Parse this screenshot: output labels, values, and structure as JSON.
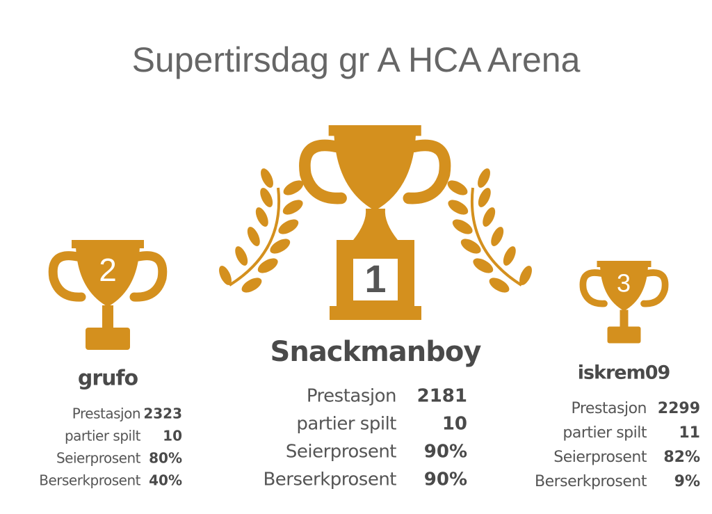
{
  "title": "Supertirsdag gr A HCA Arena",
  "podium": [
    {
      "rank": "2",
      "name": "grufo",
      "stats": [
        {
          "label": "Prestasjon",
          "value": "2323"
        },
        {
          "label": "partier spilt",
          "value": "10"
        },
        {
          "label": "Seierprosent",
          "value": "80%"
        },
        {
          "label": "Berserkprosent",
          "value": "40%"
        }
      ]
    },
    {
      "rank": "1",
      "name": "Snackmanboy",
      "stats": [
        {
          "label": "Prestasjon",
          "value": "2181"
        },
        {
          "label": "partier spilt",
          "value": "10"
        },
        {
          "label": "Seierprosent",
          "value": "90%"
        },
        {
          "label": "Berserkprosent",
          "value": "90%"
        }
      ]
    },
    {
      "rank": "3",
      "name": "iskrem09",
      "stats": [
        {
          "label": "Prestasjon",
          "value": "2299"
        },
        {
          "label": "partier spilt",
          "value": "11"
        },
        {
          "label": "Seierprosent",
          "value": "82%"
        },
        {
          "label": "Berserkprosent",
          "value": "9%"
        }
      ]
    }
  ]
}
